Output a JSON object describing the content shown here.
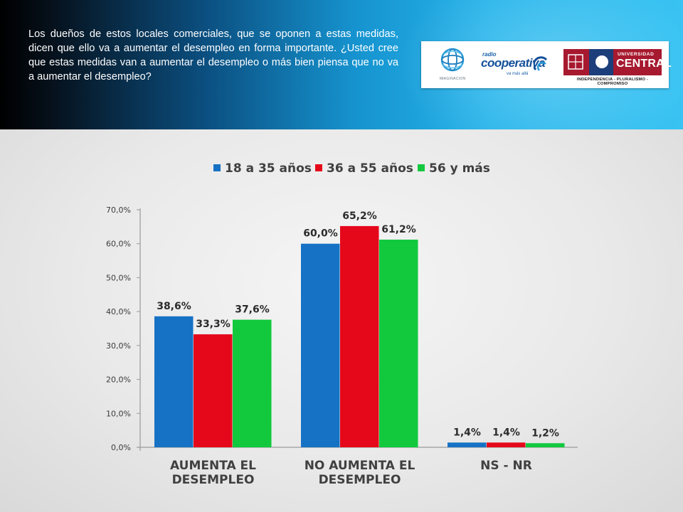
{
  "header": {
    "question": "Los dueños de estos locales comerciales, que se oponen a estas medidas, dicen que ello va a aumentar el desempleo en forma importante. ¿Usted cree que estas medidas van a aumentar el desempleo o más bien piensa que no va a aumentar el desempleo?"
  },
  "logos": {
    "imaginacion": {
      "text": "IMAGINACION",
      "icon": "globe-icon"
    },
    "cooperativa": {
      "small": "radio",
      "big": "cooperativa",
      "tag": "va más allá"
    },
    "ucentral": {
      "line1": "UNIVERSIDAD",
      "line2": "CENTRAL",
      "motto": "INDEPENDENCIA - PLURALISMO - COMPROMISO"
    }
  },
  "chart_data": {
    "type": "bar",
    "title": "",
    "xlabel": "",
    "ylabel": "",
    "categories": [
      [
        "AUMENTA  EL",
        "DESEMPLEO"
      ],
      [
        "NO  AUMENTA  EL",
        "DESEMPLEO"
      ],
      [
        "NS - NR"
      ]
    ],
    "series": [
      {
        "name": "18 a 35 años",
        "color": "#1672c4",
        "values": [
          38.6,
          60.0,
          1.4
        ],
        "labels": [
          "38,6%",
          "60,0%",
          "1,4%"
        ]
      },
      {
        "name": "36 a 55 años",
        "color": "#e5081b",
        "values": [
          33.3,
          65.2,
          1.4
        ],
        "labels": [
          "33,3%",
          "65,2%",
          "1,4%"
        ]
      },
      {
        "name": "56 y más",
        "color": "#12c93e",
        "values": [
          37.6,
          61.2,
          1.2
        ],
        "labels": [
          "37,6%",
          "61,2%",
          "1,2%"
        ]
      }
    ],
    "ylim": [
      0,
      70
    ],
    "yticks": [
      0,
      10,
      20,
      30,
      40,
      50,
      60,
      70
    ],
    "ytick_labels": [
      "0,0%",
      "10,0%",
      "20,0%",
      "30,0%",
      "40,0%",
      "50,0%",
      "60,0%",
      "70,0%"
    ],
    "legend_position": "top-center",
    "grid": false
  }
}
